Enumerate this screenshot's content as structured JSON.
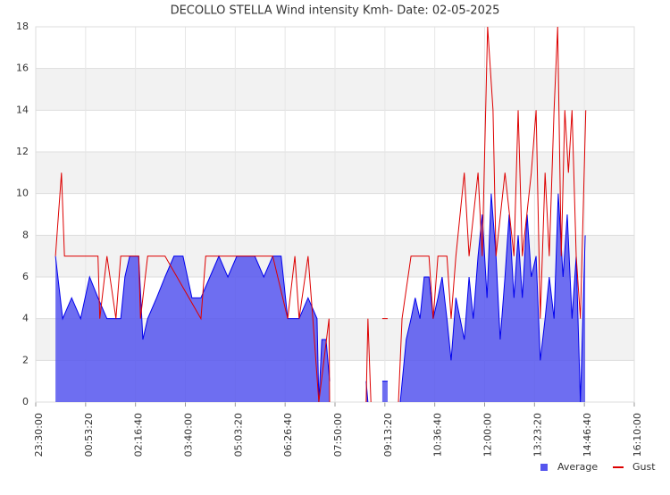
{
  "chart_data": {
    "type": "line",
    "title": "DECOLLO STELLA Wind intensity Kmh- Date: 02-05-2025",
    "xlim": [
      "23:30:00",
      "16:10:00"
    ],
    "xticks": [
      "23:30:00",
      "00:53:20",
      "02:16:40",
      "03:40:00",
      "05:03:20",
      "06:26:40",
      "07:50:00",
      "09:13:20",
      "10:36:40",
      "12:00:00",
      "13:23:20",
      "14:46:40",
      "16:10:00"
    ],
    "ylim": [
      0,
      18
    ],
    "yticks": [
      0,
      2,
      4,
      6,
      8,
      10,
      12,
      14,
      16,
      18
    ],
    "grid": true,
    "legend": "bottom-right",
    "series": [
      {
        "name": "Average",
        "color": "#0000ee",
        "fill": true,
        "x": [
          "00:03:00",
          "00:15:00",
          "00:30:00",
          "00:45:00",
          "01:00:00",
          "01:14:00",
          "01:29:00",
          "01:44:00",
          "01:52:00",
          "01:59:00",
          "02:07:00",
          "02:22:00",
          "02:29:00",
          "02:37:00",
          "02:52:00",
          "03:06:00",
          "03:21:00",
          "03:36:00",
          "03:51:00",
          "04:06:00",
          "04:21:00",
          "04:36:00",
          "04:51:00",
          "05:06:00",
          "05:21:00",
          "05:36:00",
          "05:51:00",
          "06:06:00",
          "06:20:00",
          "06:31:00",
          "06:50:00",
          "07:05:00",
          "07:20:00",
          "07:23:00",
          "07:28:00",
          "07:35:00",
          "07:41:00",
          "08:00:00",
          "08:42:00",
          "08:45:00",
          "09:00:00",
          "09:09:00",
          "09:18:00",
          "09:22:00",
          "09:39:00",
          "09:49:00",
          "09:57:00",
          "10:04:00",
          "10:12:00",
          "10:19:00",
          "10:27:00",
          "10:34:00",
          "10:42:00",
          "10:49:00",
          "10:57:00",
          "11:04:00",
          "11:12:00",
          "11:19:00",
          "11:26:00",
          "11:34:00",
          "11:41:00",
          "11:49:00",
          "11:56:00",
          "12:04:00",
          "12:11:00",
          "12:19:00",
          "12:26:00",
          "12:34:00",
          "12:41:00",
          "12:49:00",
          "12:56:00",
          "13:03:00",
          "13:11:00",
          "13:18:00",
          "13:26:00",
          "13:33:00",
          "13:41:00",
          "13:48:00",
          "13:56:00",
          "14:03:00",
          "14:11:00",
          "14:18:00",
          "14:26:00",
          "14:33:00",
          "14:40:00",
          "14:48:00"
        ],
        "values": [
          7,
          4,
          5,
          4,
          6,
          5,
          4,
          4,
          4,
          6,
          7,
          7,
          3,
          4,
          5,
          6,
          7,
          7,
          5,
          5,
          6,
          7,
          6,
          7,
          7,
          7,
          6,
          7,
          7,
          4,
          4,
          5,
          4,
          0,
          3,
          3,
          1,
          null,
          1,
          0,
          null,
          1,
          1,
          null,
          0,
          3,
          4,
          5,
          4,
          6,
          6,
          4,
          5,
          6,
          4,
          2,
          5,
          4,
          3,
          6,
          4,
          7,
          9,
          5,
          10,
          7,
          3,
          6,
          9,
          5,
          8,
          5,
          9,
          6,
          7,
          2,
          4,
          6,
          4,
          10,
          6,
          9,
          4,
          7,
          0,
          8
        ]
      },
      {
        "name": "Gust",
        "color": "#dd0000",
        "fill": false,
        "x": [
          "00:03:00",
          "00:13:00",
          "00:18:00",
          "00:30:00",
          "01:14:00",
          "01:17:00",
          "01:29:00",
          "01:44:00",
          "01:52:00",
          "02:22:00",
          "02:25:00",
          "02:37:00",
          "02:52:00",
          "03:06:00",
          "04:06:00",
          "04:14:00",
          "04:36:00",
          "04:51:00",
          "05:06:00",
          "05:21:00",
          "06:06:00",
          "06:31:00",
          "06:43:00",
          "06:50:00",
          "07:05:00",
          "07:13:00",
          "07:23:00",
          "07:40:00",
          "07:41:00",
          "08:00:00",
          "08:42:00",
          "08:45:00",
          "08:50:00",
          "09:00:00",
          "09:09:00",
          "09:18:00",
          "09:22:00",
          "09:36:00",
          "09:42:00",
          "09:57:00",
          "10:12:00",
          "10:27:00",
          "10:34:00",
          "10:42:00",
          "10:57:00",
          "11:04:00",
          "11:12:00",
          "11:26:00",
          "11:34:00",
          "11:49:00",
          "11:56:00",
          "12:05:00",
          "12:14:00",
          "12:19:00",
          "12:34:00",
          "12:49:00",
          "12:56:00",
          "13:03:00",
          "13:18:00",
          "13:26:00",
          "13:33:00",
          "13:41:00",
          "13:48:00",
          "13:56:00",
          "14:02:00",
          "14:08:00",
          "14:14:00",
          "14:20:00",
          "14:26:00",
          "14:33:00",
          "14:40:00",
          "14:49:00"
        ],
        "values": [
          7,
          11,
          7,
          7,
          7,
          4,
          7,
          4,
          7,
          7,
          4,
          7,
          7,
          7,
          4,
          7,
          7,
          7,
          7,
          7,
          7,
          4,
          7,
          4,
          7,
          4,
          0,
          4,
          0,
          null,
          0,
          4,
          0,
          null,
          4,
          4,
          null,
          0,
          4,
          7,
          7,
          7,
          4,
          7,
          7,
          4,
          7,
          11,
          7,
          11,
          7,
          18,
          14,
          7,
          11,
          7,
          14,
          7,
          11,
          14,
          4,
          11,
          7,
          14,
          18,
          7,
          14,
          11,
          14,
          7,
          4,
          14
        ]
      }
    ]
  }
}
